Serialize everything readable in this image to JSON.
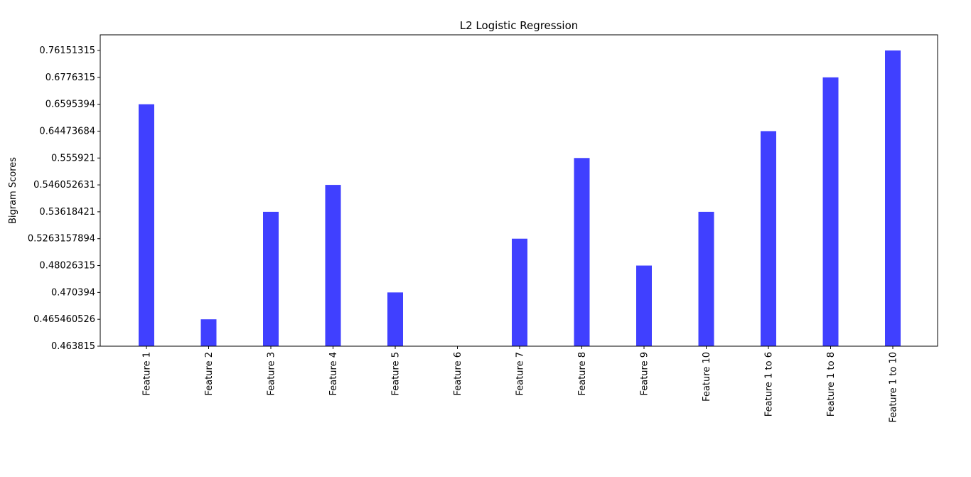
{
  "chart_data": {
    "type": "bar",
    "title": "L2 Logistic Regression",
    "xlabel": "",
    "ylabel": "Bigram Scores",
    "categories": [
      "Feature 1",
      "Feature 2",
      "Feature 3",
      "Feature 4",
      "Feature 5",
      "Feature 6",
      "Feature 7",
      "Feature 8",
      "Feature 9",
      "Feature 10",
      "Feature 1 to 6",
      "Feature 1 to 8",
      "Feature 1 to 10"
    ],
    "values": [
      "0.6595394",
      "0.465460526",
      "0.53618421",
      "0.546052631",
      "0.470394",
      "0.463815",
      "0.5263157894",
      "0.555921",
      "0.48026315",
      "0.53618421",
      "0.64473684",
      "0.6776315",
      "0.76151315"
    ],
    "y_ticks": [
      "0.463815",
      "0.465460526",
      "0.470394",
      "0.48026315",
      "0.5263157894",
      "0.53618421",
      "0.546052631",
      "0.555921",
      "0.64473684",
      "0.6595394",
      "0.6776315",
      "0.76151315"
    ],
    "y_axis_note": "categorical y axis: each distinct score is one evenly spaced tick",
    "bar_color": "#4040ff",
    "grid": false,
    "legend": "none"
  }
}
